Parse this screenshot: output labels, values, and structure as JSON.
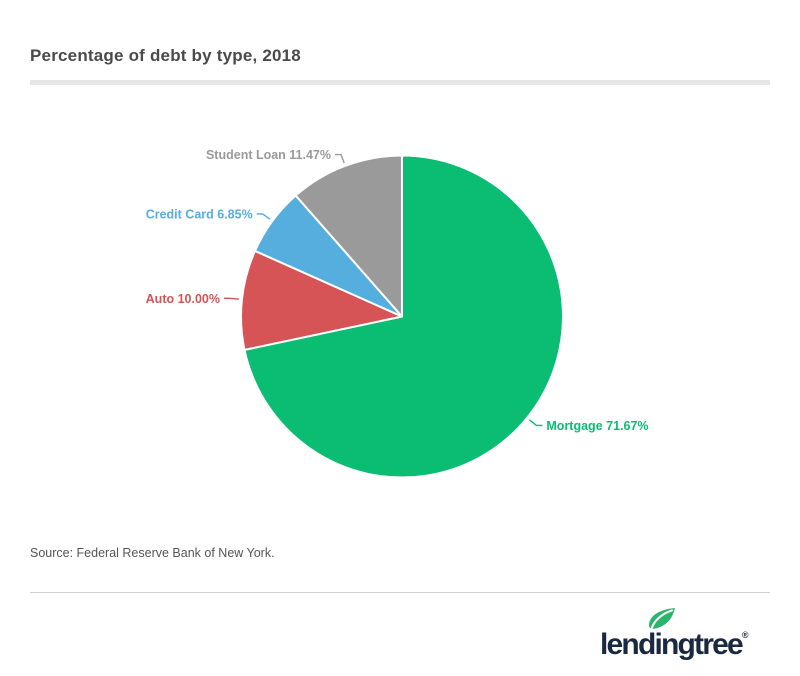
{
  "title": "Percentage of debt by type, 2018",
  "source": "Source: Federal Reserve Bank of New York.",
  "logo": {
    "text": "lendingtree",
    "registered": "®",
    "leaf_color": "#2ab46c",
    "text_color": "#1b2940"
  },
  "chart_data": {
    "type": "pie",
    "title": "Percentage of debt by type, 2018",
    "unit": "%",
    "start_angle_deg": 0,
    "direction": "clockwise",
    "label_position": "outside-with-connectors",
    "slices": [
      {
        "label": "Mortgage",
        "value": 71.67,
        "display": "Mortgage 71.67%",
        "color": "#0abd73"
      },
      {
        "label": "Auto",
        "value": 10.0,
        "display": "Auto 10.00%",
        "color": "#d65356"
      },
      {
        "label": "Credit Card",
        "value": 6.85,
        "display": "Credit Card 6.85%",
        "color": "#56aede"
      },
      {
        "label": "Student Loan",
        "value": 11.47,
        "display": "Student Loan 11.47%",
        "color": "#9a9a9a"
      }
    ]
  }
}
